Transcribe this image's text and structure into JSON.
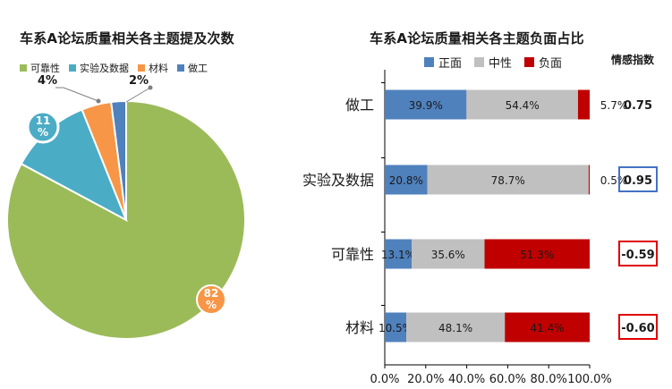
{
  "chart_data": [
    {
      "type": "pie",
      "title": "车系A论坛质量相关各主题提及次数",
      "slices": [
        {
          "label": "可靠性",
          "value": 82,
          "data_label": "82%",
          "color": "#9bbb59"
        },
        {
          "label": "实验及数据",
          "value": 11,
          "data_label": "11%",
          "color": "#4bacc6"
        },
        {
          "label": "材料",
          "value": 4,
          "data_label": "4%",
          "color": "#f79646"
        },
        {
          "label": "做工",
          "value": 2,
          "data_label": "2%",
          "color": "#4f81bd"
        }
      ],
      "legend": [
        "可靠性",
        "实验及数据",
        "材料",
        "做工"
      ]
    },
    {
      "type": "bar",
      "orientation": "horizontal-stacked-100",
      "title": "车系A论坛质量相关各主题负面占比",
      "categories": [
        "做工",
        "实验及数据",
        "可靠性",
        "材料"
      ],
      "series": [
        {
          "name": "正面",
          "color": "#4f81bd",
          "values": [
            39.9,
            20.8,
            13.1,
            10.5
          ],
          "labels": [
            "39.9%",
            "20.8%",
            "13.1%",
            "10.5%"
          ]
        },
        {
          "name": "中性",
          "color": "#c0c0c0",
          "values": [
            54.4,
            78.7,
            35.6,
            48.1
          ],
          "labels": [
            "54.4%",
            "78.7%",
            "35.6%",
            "48.1%"
          ]
        },
        {
          "name": "负面",
          "color": "#c00000",
          "values": [
            5.7,
            0.5,
            51.3,
            41.4
          ],
          "labels": [
            "5.7%",
            "0.5%",
            "51.3%",
            "41.4%"
          ]
        }
      ],
      "xlim": [
        0,
        100
      ],
      "xticks": [
        "0.0%",
        "20.0%",
        "40.0%",
        "60.0%",
        "80.0%",
        "100.0%"
      ],
      "sentiment_header": "情感指数",
      "sentiment_index": [
        {
          "value": "0.75",
          "boxed": false,
          "box_color": ""
        },
        {
          "value": "0.95",
          "boxed": true,
          "box_color": "#4472c4"
        },
        {
          "value": "-0.59",
          "boxed": true,
          "box_color": "#e00000"
        },
        {
          "value": "-0.60",
          "boxed": true,
          "box_color": "#e00000"
        }
      ]
    }
  ]
}
